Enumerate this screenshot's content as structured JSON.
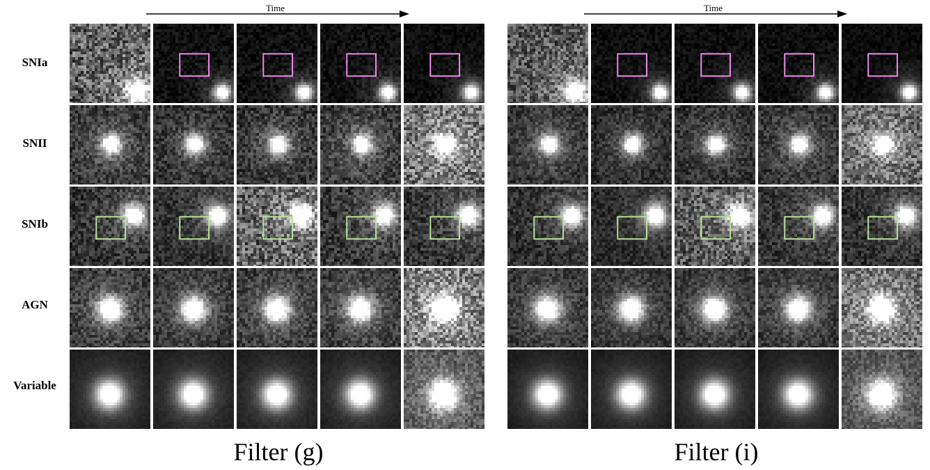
{
  "axis_label": "Time",
  "rows": [
    {
      "label": "SNIa",
      "box": "magenta"
    },
    {
      "label": "SNII",
      "box": null
    },
    {
      "label": "SNIb",
      "box": "green"
    },
    {
      "label": "AGN",
      "box": null
    },
    {
      "label": "Variable",
      "box": null
    }
  ],
  "panels": [
    {
      "title": "Filter (g)"
    },
    {
      "title": "Filter (i)"
    }
  ],
  "colors": {
    "magenta_box": "#ee88ee",
    "green_box": "#b8e09a",
    "divider": "#ffffff",
    "background": "#ffffff"
  }
}
